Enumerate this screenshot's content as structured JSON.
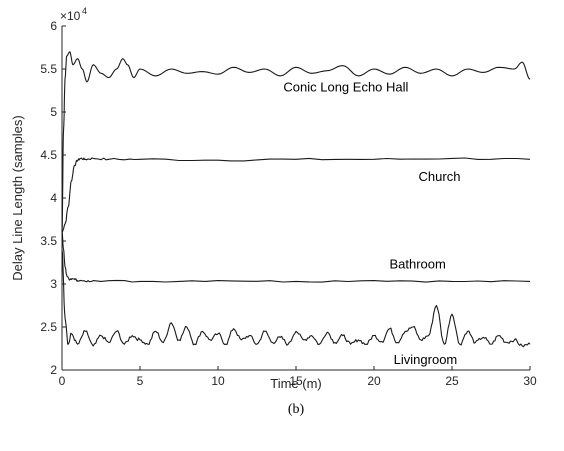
{
  "chart_data": {
    "type": "line",
    "xlabel": "Time (m)",
    "ylabel": "Delay Line Length (samples)",
    "xlim": [
      0,
      30
    ],
    "ylim": [
      2,
      6
    ],
    "y_exponent_label": "×10",
    "y_exponent_power": "4",
    "xticks": [
      "0",
      "5",
      "10",
      "15",
      "20",
      "25",
      "30"
    ],
    "yticks": [
      "2",
      "2.5",
      "3",
      "3.5",
      "4",
      "4.5",
      "5",
      "5.5",
      "6"
    ],
    "grid": false,
    "caption": "(b)",
    "series": [
      {
        "name": "Conic Long Echo Hall",
        "label_at": [
          18.2,
          5.24
        ],
        "x": [
          0,
          0.1,
          0.2,
          0.3,
          0.5,
          0.7,
          1,
          1.3,
          1.6,
          2,
          2.5,
          3,
          3.5,
          3.9,
          4.2,
          4.6,
          5,
          6,
          7,
          8,
          9,
          10,
          11,
          12,
          13,
          14,
          15,
          16,
          17,
          18,
          19,
          20,
          21,
          22,
          23,
          24,
          25,
          26,
          27,
          28,
          29,
          29.5,
          30
        ],
        "y": [
          3.6,
          4.8,
          5.4,
          5.65,
          5.7,
          5.55,
          5.62,
          5.5,
          5.35,
          5.55,
          5.45,
          5.4,
          5.5,
          5.62,
          5.55,
          5.4,
          5.5,
          5.42,
          5.5,
          5.45,
          5.47,
          5.44,
          5.52,
          5.46,
          5.5,
          5.42,
          5.52,
          5.45,
          5.48,
          5.54,
          5.42,
          5.5,
          5.44,
          5.52,
          5.45,
          5.5,
          5.42,
          5.5,
          5.46,
          5.52,
          5.5,
          5.58,
          5.38
        ]
      },
      {
        "name": "Church",
        "label_at": [
          24.2,
          4.2
        ],
        "x": [
          0,
          0.2,
          0.4,
          0.6,
          0.8,
          1,
          1.2,
          1.5,
          2,
          3,
          5,
          10,
          15,
          20,
          25,
          30
        ],
        "y": [
          3.6,
          3.7,
          3.9,
          4.2,
          4.38,
          4.44,
          4.46,
          4.45,
          4.46,
          4.45,
          4.45,
          4.44,
          4.45,
          4.45,
          4.46,
          4.45
        ],
        "noise": 0.012
      },
      {
        "name": "Bathroom",
        "label_at": [
          22.8,
          3.18
        ],
        "x": [
          0,
          0.1,
          0.2,
          0.3,
          0.5,
          0.8,
          1,
          1.5,
          2,
          5,
          10,
          15,
          20,
          25,
          30
        ],
        "y": [
          3.6,
          3.4,
          3.2,
          3.1,
          3.05,
          3.06,
          3.04,
          3.03,
          3.04,
          3.03,
          3.04,
          3.03,
          3.04,
          3.03,
          3.03
        ],
        "noise": 0.01
      },
      {
        "name": "Livingroom",
        "label_at": [
          23.3,
          2.07
        ],
        "x": [
          0,
          0.2,
          0.4,
          0.6,
          1,
          1.5,
          2,
          2.5,
          3,
          3.5,
          4,
          4.5,
          5,
          5.5,
          6,
          6.5,
          7,
          7.5,
          8,
          8.5,
          9,
          9.5,
          10,
          10.5,
          11,
          11.5,
          12,
          12.5,
          13,
          13.5,
          14,
          14.5,
          15,
          15.5,
          16,
          16.5,
          17,
          17.5,
          18,
          18.5,
          19,
          19.5,
          20,
          20.5,
          21,
          21.5,
          22,
          22.5,
          23,
          23.5,
          24,
          24.5,
          25,
          25.5,
          26,
          26.5,
          27,
          27.5,
          28,
          28.5,
          29,
          29.5,
          30
        ],
        "y": [
          3.4,
          2.6,
          2.3,
          2.42,
          2.3,
          2.45,
          2.28,
          2.4,
          2.32,
          2.45,
          2.3,
          2.4,
          2.35,
          2.3,
          2.45,
          2.32,
          2.55,
          2.35,
          2.5,
          2.3,
          2.45,
          2.35,
          2.42,
          2.3,
          2.48,
          2.35,
          2.4,
          2.3,
          2.45,
          2.32,
          2.38,
          2.3,
          2.45,
          2.35,
          2.4,
          2.3,
          2.44,
          2.32,
          2.4,
          2.3,
          2.35,
          2.3,
          2.4,
          2.33,
          2.48,
          2.32,
          2.45,
          2.5,
          2.35,
          2.4,
          2.75,
          2.3,
          2.65,
          2.3,
          2.45,
          2.32,
          2.38,
          2.3,
          2.4,
          2.32,
          2.35,
          2.28,
          2.3
        ],
        "noise": 0.02
      }
    ]
  }
}
